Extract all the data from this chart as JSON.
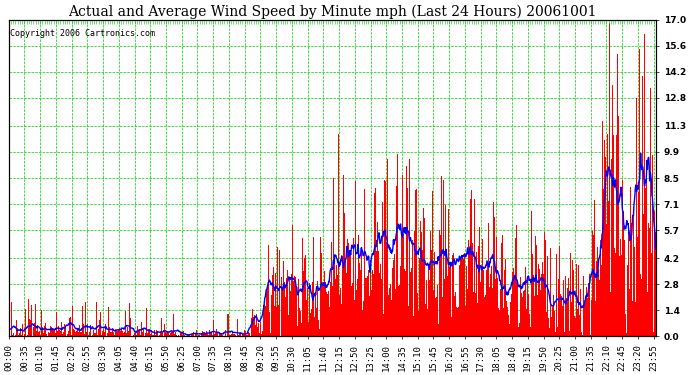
{
  "title": "Actual and Average Wind Speed by Minute mph (Last 24 Hours) 20061001",
  "copyright": "Copyright 2006 Cartronics.com",
  "y_ticks": [
    0.0,
    1.4,
    2.8,
    4.2,
    5.7,
    7.1,
    8.5,
    9.9,
    11.3,
    12.8,
    14.2,
    15.6,
    17.0
  ],
  "y_max": 17.0,
  "y_min": 0.0,
  "bar_color": "#FF0000",
  "line_color": "#0000FF",
  "grid_color": "#00CC00",
  "background_color": "#FFFFFF",
  "plot_bg_color": "#FFFFFF",
  "title_fontsize": 10,
  "copyright_fontsize": 6,
  "tick_fontsize": 6.5,
  "x_tick_interval": 35
}
